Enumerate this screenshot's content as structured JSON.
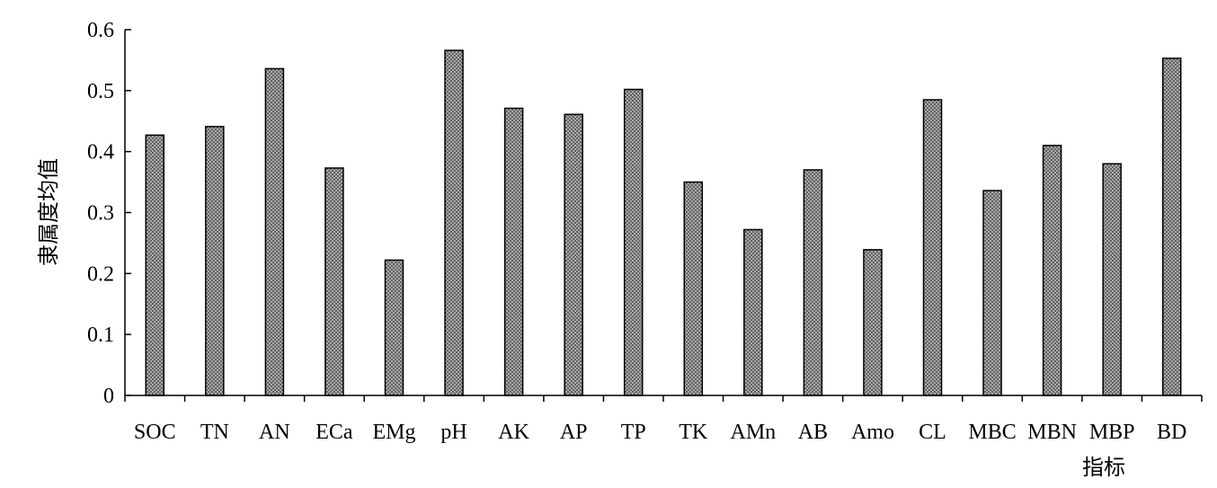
{
  "chart_data": {
    "type": "bar",
    "categories": [
      "SOC",
      "TN",
      "AN",
      "ECa",
      "EMg",
      "pH",
      "AK",
      "AP",
      "TP",
      "TK",
      "AMn",
      "AB",
      "Amo",
      "CL",
      "MBC",
      "MBN",
      "MBP",
      "BD"
    ],
    "values": [
      0.427,
      0.441,
      0.536,
      0.373,
      0.222,
      0.566,
      0.471,
      0.461,
      0.502,
      0.35,
      0.272,
      0.37,
      0.239,
      0.485,
      0.336,
      0.41,
      0.38,
      0.553
    ],
    "ylabel": "隶属度均值",
    "xlabel": "指标",
    "ylim": [
      0,
      0.6
    ],
    "yticks": [
      "0",
      "0.1",
      "0.2",
      "0.3",
      "0.4",
      "0.5",
      "0.6"
    ],
    "bar_pattern": "crosshatch",
    "bar_color": "#808080",
    "grid": false,
    "legend": "none"
  }
}
